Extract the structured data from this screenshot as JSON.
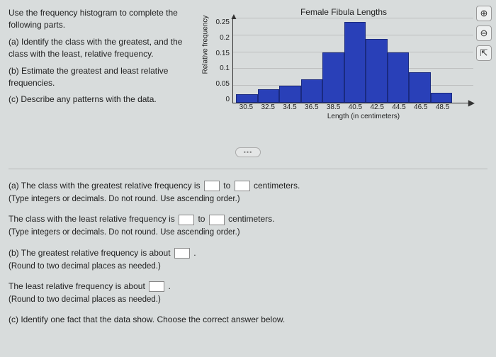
{
  "instructions": {
    "intro": "Use the frequency histogram to complete the following parts.",
    "a": "(a) Identify the class with the greatest, and the class with the least, relative frequency.",
    "b": "(b) Estimate the greatest and least relative frequencies.",
    "c": "(c) Describe any patterns with the data."
  },
  "chart": {
    "title": "Female Fibula Lengths",
    "y_label": "Relative frequency",
    "x_label": "Length (in centimeters)",
    "y_ticks": [
      "0.25",
      "0.2",
      "0.15",
      "0.1",
      "0.05",
      "0"
    ],
    "y_max": 0.25,
    "x_ticks": [
      "30.5",
      "32.5",
      "34.5",
      "36.5",
      "38.5",
      "40.5",
      "42.5",
      "44.5",
      "46.5",
      "48.5"
    ],
    "bars": [
      0.025,
      0.04,
      0.05,
      0.07,
      0.15,
      0.24,
      0.19,
      0.15,
      0.09,
      0.03
    ],
    "bar_color": "#2940b8",
    "bar_border": "#1a2a80",
    "grid_color": "#bdbfbf",
    "background": "#d8dcdc"
  },
  "answers": {
    "a1_prefix": "(a) The class with the greatest relative frequency is ",
    "to": " to ",
    "cm": " centimeters.",
    "a1_hint": "(Type integers or decimals. Do not round. Use ascending order.)",
    "a2_prefix": "The class with the least relative frequency is ",
    "a2_hint": "(Type integers or decimals. Do not round. Use ascending order.)",
    "b1_prefix": "(b) The greatest relative frequency is about ",
    "period": ".",
    "b_hint": "(Round to two decimal places as needed.)",
    "b2_prefix": "The least relative frequency is about ",
    "c_text": "(c) Identify one fact that the data show. Choose the correct answer below."
  },
  "icons": {
    "zoom_in": "⊕",
    "zoom_out": "⊖",
    "open": "⇱"
  },
  "pill": "•••"
}
